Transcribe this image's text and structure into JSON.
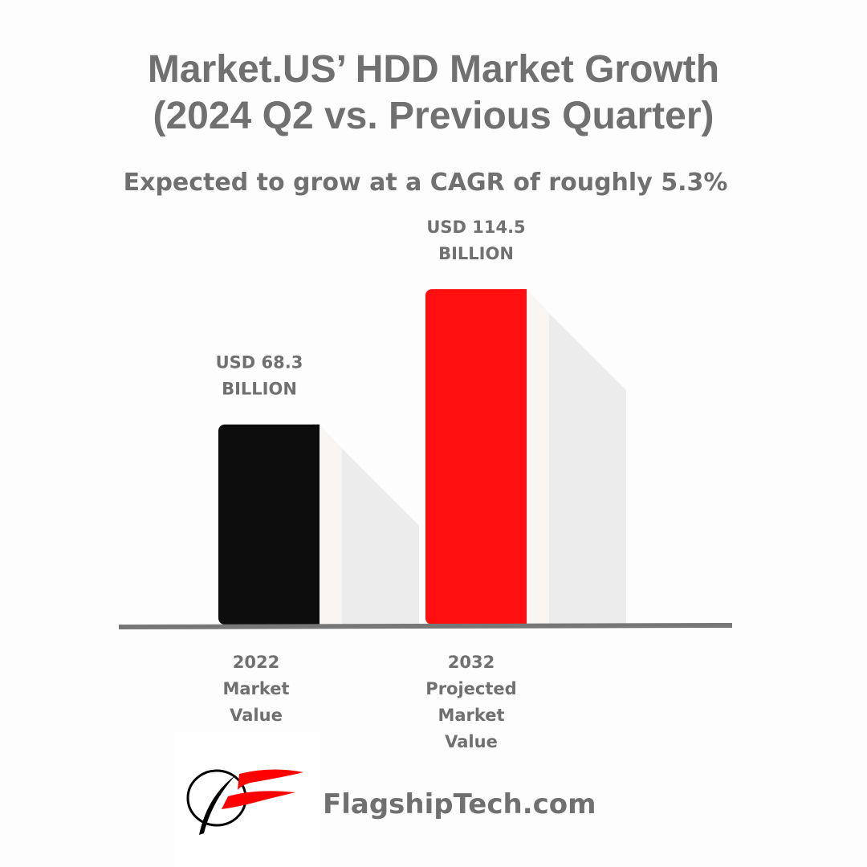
{
  "chart_data": {
    "type": "bar",
    "title": "Market.US’ HDD Market Growth\n(2024 Q2 vs. Previous Quarter)",
    "title_lines": [
      "Market.US’ HDD Market Growth",
      "(2024 Q2 vs. Previous Quarter)"
    ],
    "subtitle": "Expected to grow at a CAGR of roughly 5.3%",
    "categories": [
      "2022 Market Value",
      "2032 Projected Market Value"
    ],
    "category_lines": [
      [
        "2022",
        "Market",
        "Value"
      ],
      [
        "2032",
        "Projected",
        "Market",
        "Value"
      ]
    ],
    "values": [
      68.3,
      114.5
    ],
    "unit": "USD billion",
    "data_labels": [
      [
        "USD 68.3",
        "BILLION"
      ],
      [
        "USD 114.5",
        "BILLION"
      ]
    ],
    "colors": [
      "#0d0d0d",
      "#ff0f0f"
    ],
    "xlabel": "",
    "ylabel": "",
    "ylim": [
      0,
      120
    ],
    "grid": false,
    "legend": "none"
  },
  "footer": {
    "site": "FlagshipTech.com",
    "logo_colors": [
      "#000000",
      "#ff0000"
    ]
  }
}
